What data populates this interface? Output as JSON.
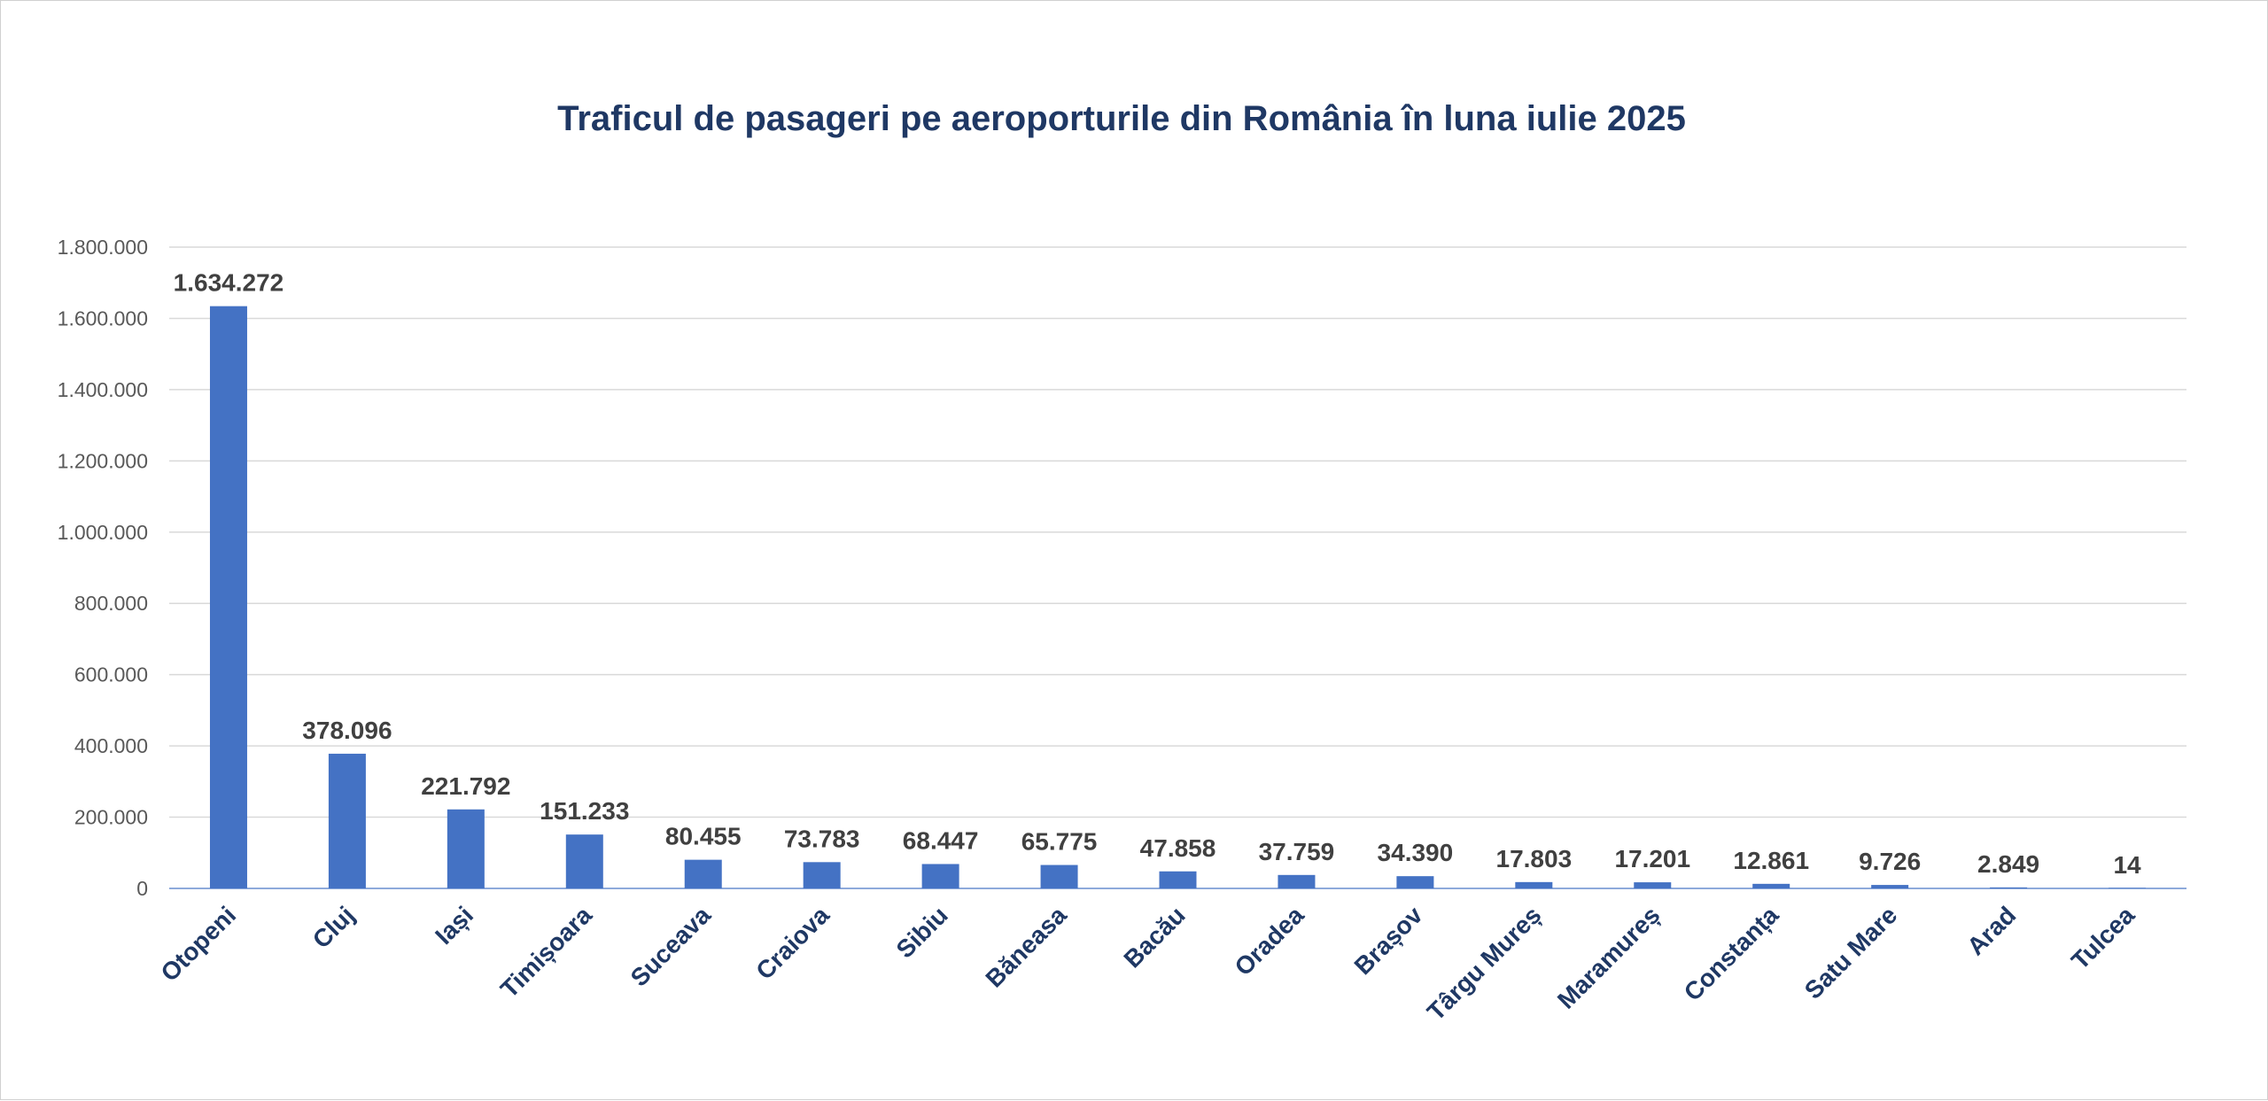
{
  "chart_data": {
    "type": "bar",
    "title": "Traficul de pasageri pe aeroporturile din România în luna iulie 2025",
    "xlabel": "",
    "ylabel": "",
    "ylim": [
      0,
      1800000
    ],
    "yticks": [
      0,
      200000,
      400000,
      600000,
      800000,
      1000000,
      1200000,
      1400000,
      1600000,
      1800000
    ],
    "ytick_labels": [
      "0",
      "200.000",
      "400.000",
      "600.000",
      "800.000",
      "1.000.000",
      "1.200.000",
      "1.400.000",
      "1.600.000",
      "1.800.000"
    ],
    "grid": true,
    "legend": "none",
    "bar_color": "#4472c4",
    "categories": [
      "Otopeni",
      "Cluj",
      "Iași",
      "Timișoara",
      "Suceava",
      "Craiova",
      "Sibiu",
      "Băneasa",
      "Bacău",
      "Oradea",
      "Brașov",
      "Târgu Mureș",
      "Maramureș",
      "Constanța",
      "Satu Mare",
      "Arad",
      "Tulcea"
    ],
    "values": [
      1634272,
      378096,
      221792,
      151233,
      80455,
      73783,
      68447,
      65775,
      47858,
      37759,
      34390,
      17803,
      17201,
      12861,
      9726,
      2849,
      14
    ],
    "value_labels": [
      "1.634.272",
      "378.096",
      "221.792",
      "151.233",
      "80.455",
      "73.783",
      "68.447",
      "65.775",
      "47.858",
      "37.759",
      "34.390",
      "17.803",
      "17.201",
      "12.861",
      "9.726",
      "2.849",
      "14"
    ]
  }
}
